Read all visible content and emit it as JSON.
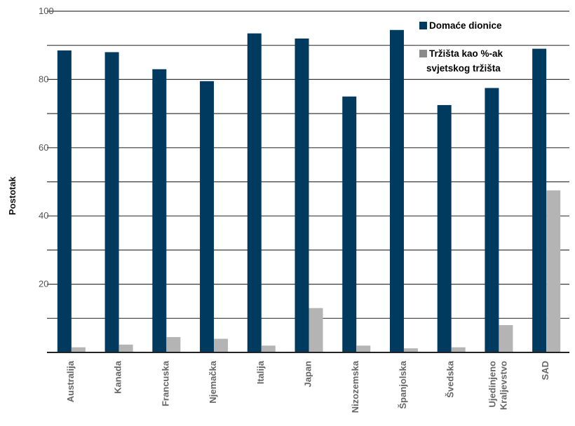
{
  "chart_data": {
    "type": "bar",
    "title": "",
    "xlabel": "",
    "ylabel": "Postotak",
    "ylim": [
      0,
      100
    ],
    "yticks": [
      20,
      40,
      60,
      80,
      100
    ],
    "grid": true,
    "legend_position": "top-right",
    "categories": [
      "Australija",
      "Kanada",
      "Francuska",
      "Njemačka",
      "Italija",
      "Japan",
      "Nizozemska",
      "Španjolska",
      "Švedska",
      "Ujedinjeno Kraljevstvo",
      "SAD"
    ],
    "series": [
      {
        "name": "Domaće dionice",
        "color": "#003a5e",
        "values": [
          88.5,
          88,
          83,
          79.5,
          93.5,
          92,
          75,
          94.5,
          72.5,
          77.5,
          89
        ]
      },
      {
        "name": "Tržišta kao %-ak svjetskog tržišta",
        "color": "#b4b4b4",
        "values": [
          1.5,
          2.3,
          4.5,
          4,
          2,
          13,
          2,
          1.2,
          1.5,
          8,
          47.5
        ]
      }
    ]
  }
}
